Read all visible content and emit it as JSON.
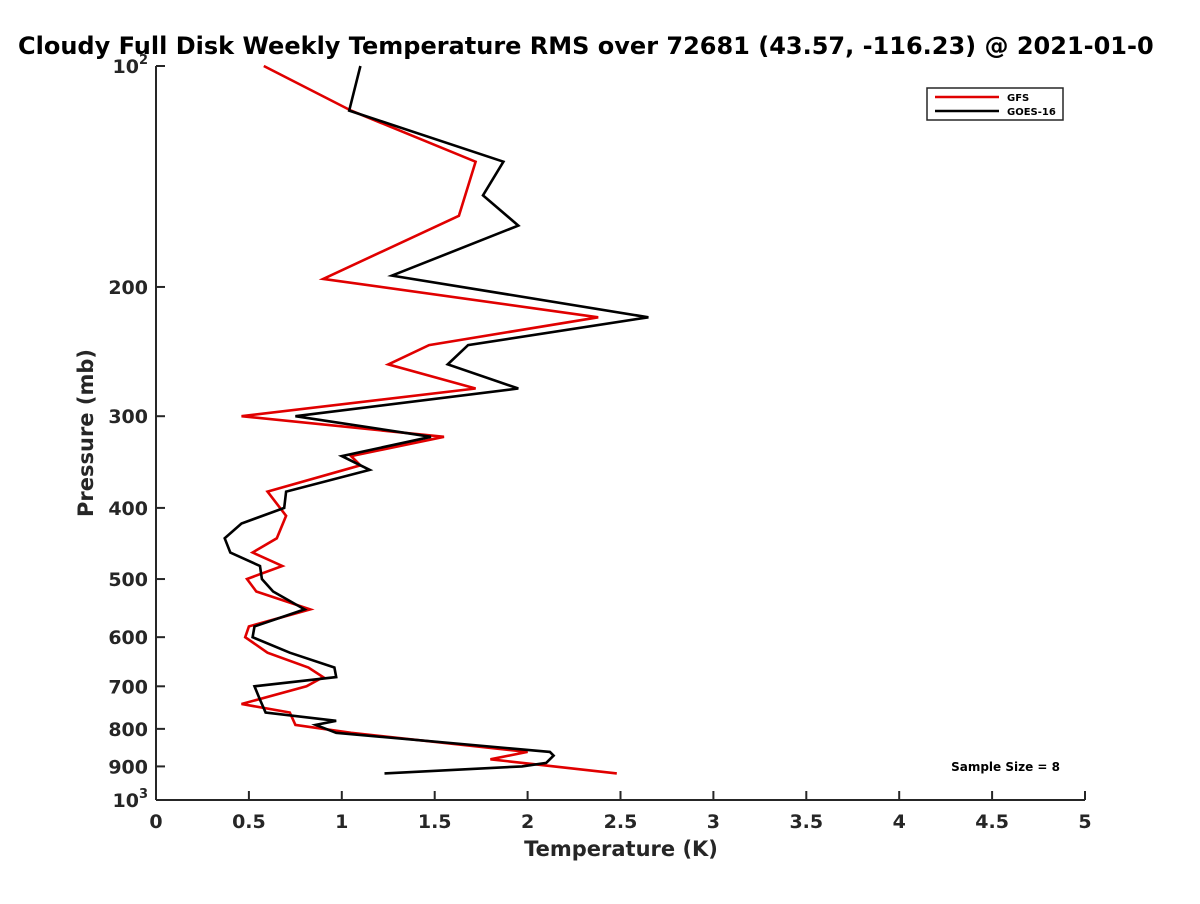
{
  "chart_data": {
    "type": "line",
    "title": "Cloudy Full Disk Weekly Temperature RMS over 72681 (43.57, -116.23) @ 2021-01-0",
    "xlabel": "Temperature (K)",
    "ylabel": "Pressure (mb)",
    "xlim": [
      0,
      5
    ],
    "ylim": [
      1000,
      100
    ],
    "yscale": "log",
    "y_reversed": true,
    "x_ticks": [
      "0",
      "0.5",
      "1",
      "1.5",
      "2",
      "2.5",
      "3",
      "3.5",
      "4",
      "4.5",
      "5"
    ],
    "y_ticks": [
      {
        "value": 100,
        "label": "10",
        "sup": "2"
      },
      {
        "value": 200,
        "label": "200"
      },
      {
        "value": 300,
        "label": "300"
      },
      {
        "value": 400,
        "label": "400"
      },
      {
        "value": 500,
        "label": "500"
      },
      {
        "value": 600,
        "label": "600"
      },
      {
        "value": 700,
        "label": "700"
      },
      {
        "value": 800,
        "label": "800"
      },
      {
        "value": 900,
        "label": "900"
      },
      {
        "value": 1000,
        "label": "10",
        "sup": "3"
      }
    ],
    "grid": false,
    "legend_position": "top-right",
    "annotation": "Sample Size = 8",
    "series": [
      {
        "name": "GFS",
        "color": "#e00000",
        "points": [
          [
            0.58,
            100
          ],
          [
            1.05,
            115
          ],
          [
            1.72,
            135
          ],
          [
            1.63,
            160
          ],
          [
            0.9,
            195
          ],
          [
            2.38,
            220
          ],
          [
            1.47,
            240
          ],
          [
            1.25,
            255
          ],
          [
            1.72,
            275
          ],
          [
            0.46,
            300
          ],
          [
            1.55,
            320
          ],
          [
            1.05,
            340
          ],
          [
            1.1,
            350
          ],
          [
            0.6,
            380
          ],
          [
            0.7,
            410
          ],
          [
            0.65,
            440
          ],
          [
            0.52,
            460
          ],
          [
            0.68,
            480
          ],
          [
            0.49,
            500
          ],
          [
            0.54,
            520
          ],
          [
            0.83,
            550
          ],
          [
            0.5,
            580
          ],
          [
            0.48,
            600
          ],
          [
            0.6,
            630
          ],
          [
            0.82,
            660
          ],
          [
            0.9,
            680
          ],
          [
            0.81,
            700
          ],
          [
            0.46,
            740
          ],
          [
            0.72,
            760
          ],
          [
            0.75,
            790
          ],
          [
            1.05,
            810
          ],
          [
            2.0,
            860
          ],
          [
            1.8,
            880
          ],
          [
            2.48,
            920
          ]
        ]
      },
      {
        "name": "GOES-16",
        "color": "#000000",
        "points": [
          [
            1.1,
            100
          ],
          [
            1.04,
            115
          ],
          [
            1.87,
            135
          ],
          [
            1.76,
            150
          ],
          [
            1.95,
            165
          ],
          [
            1.27,
            193
          ],
          [
            2.65,
            220
          ],
          [
            1.68,
            240
          ],
          [
            1.57,
            255
          ],
          [
            1.95,
            275
          ],
          [
            0.75,
            300
          ],
          [
            1.48,
            320
          ],
          [
            1.0,
            340
          ],
          [
            1.15,
            355
          ],
          [
            0.7,
            380
          ],
          [
            0.69,
            400
          ],
          [
            0.46,
            420
          ],
          [
            0.37,
            440
          ],
          [
            0.4,
            460
          ],
          [
            0.56,
            480
          ],
          [
            0.57,
            500
          ],
          [
            0.63,
            520
          ],
          [
            0.8,
            550
          ],
          [
            0.53,
            580
          ],
          [
            0.52,
            600
          ],
          [
            0.72,
            630
          ],
          [
            0.96,
            660
          ],
          [
            0.97,
            680
          ],
          [
            0.53,
            700
          ],
          [
            0.56,
            730
          ],
          [
            0.59,
            760
          ],
          [
            0.97,
            780
          ],
          [
            0.86,
            790
          ],
          [
            0.97,
            810
          ],
          [
            2.12,
            860
          ],
          [
            2.14,
            870
          ],
          [
            2.1,
            890
          ],
          [
            1.97,
            900
          ],
          [
            1.23,
            920
          ]
        ]
      }
    ]
  }
}
